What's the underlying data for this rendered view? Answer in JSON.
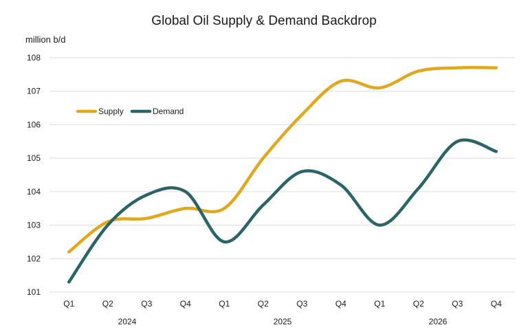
{
  "chart_data": {
    "type": "line",
    "title": "Global Oil Supply & Demand Backdrop",
    "ylabel": "million b/d",
    "xlabel": "",
    "categories": [
      "Q1",
      "Q2",
      "Q3",
      "Q4",
      "Q1",
      "Q2",
      "Q3",
      "Q4",
      "Q1",
      "Q2",
      "Q3",
      "Q4"
    ],
    "years": [
      "2024",
      "2025",
      "2026"
    ],
    "ylim": [
      101,
      108
    ],
    "yticks": [
      101,
      102,
      103,
      104,
      105,
      106,
      107,
      108
    ],
    "grid": true,
    "legend_position": "top-left",
    "series": [
      {
        "name": "Supply",
        "color": "#E2A71A",
        "values": [
          102.2,
          103.1,
          103.2,
          103.5,
          103.5,
          105.0,
          106.3,
          107.3,
          107.1,
          107.6,
          107.7,
          107.7
        ]
      },
      {
        "name": "Demand",
        "color": "#2A6468",
        "values": [
          101.3,
          103.0,
          103.9,
          104.0,
          102.5,
          103.6,
          104.6,
          104.2,
          103.0,
          104.1,
          105.5,
          105.2
        ]
      }
    ]
  }
}
